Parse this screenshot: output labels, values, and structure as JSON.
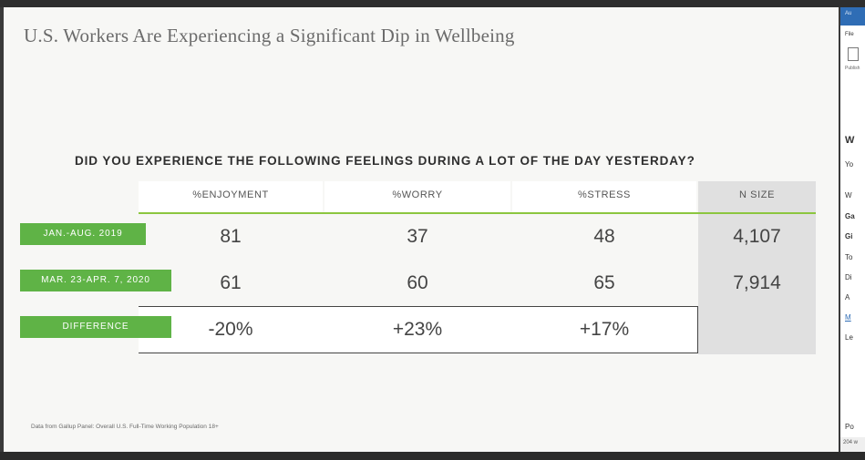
{
  "slide": {
    "title": "U.S. Workers Are Experiencing a Significant Dip in Wellbeing",
    "question": "DID YOU EXPERIENCE THE FOLLOWING FEELINGS DURING A LOT OF THE DAY YESTERDAY?",
    "source": "Data from Gallup Panel: Overall U.S. Full-Time Working Population 18+"
  },
  "table": {
    "headers": [
      "%ENJOYMENT",
      "%WORRY",
      "%STRESS",
      "N SIZE"
    ],
    "rows": [
      {
        "label": "JAN.-AUG. 2019",
        "values": [
          "81",
          "37",
          "48"
        ],
        "n": "4,107"
      },
      {
        "label": "MAR. 23-APR. 7, 2020",
        "values": [
          "61",
          "60",
          "65"
        ],
        "n": "7,914"
      },
      {
        "label": "DIFFERENCE",
        "values": [
          "-20%",
          "+23%",
          "+17%"
        ],
        "n": ""
      }
    ]
  },
  "side_panel": {
    "tab": "Au",
    "file_label": "File",
    "publish_label": "Publish",
    "items": [
      "W",
      "Yo",
      "W",
      "Ga",
      "Gi",
      "To",
      "Di",
      "A",
      "M",
      "Le",
      "Po"
    ],
    "status": "204 w"
  },
  "colors": {
    "accent_green": "#5fb346",
    "header_rule_green": "#8cc63f",
    "nsize_gray": "#e0e0e0",
    "word_blue": "#2f6db5"
  }
}
